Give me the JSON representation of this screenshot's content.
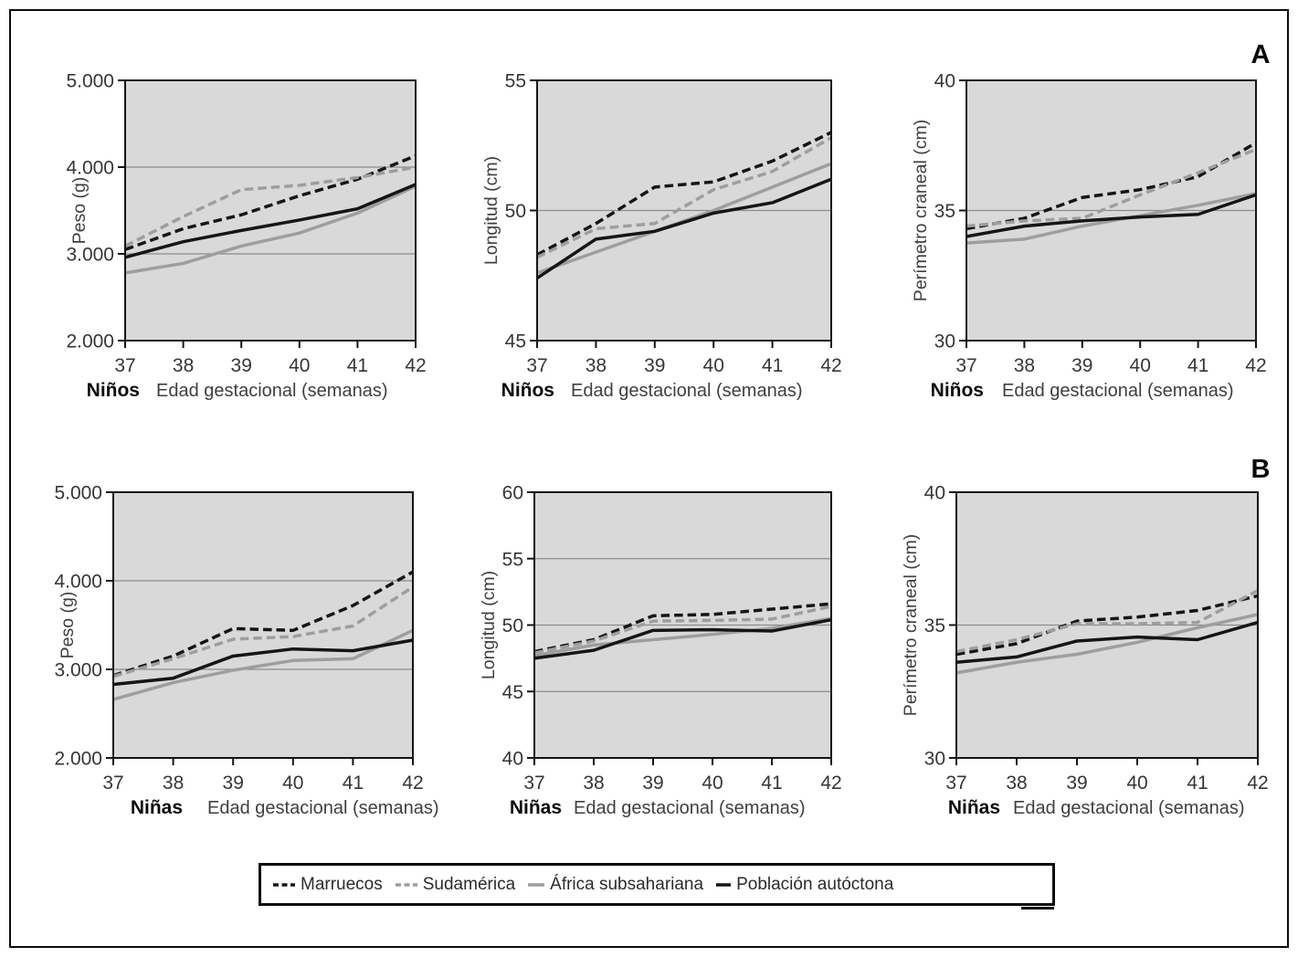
{
  "figure": {
    "panels": [
      "A",
      "B"
    ]
  },
  "colors": {
    "plot_bg": "#d9d9d9",
    "gridline": "#8c8c8c",
    "axis": "#141414",
    "black_line": "#151515",
    "gray_line": "#9e9e9e"
  },
  "legend": {
    "items": [
      {
        "label": "Marruecos",
        "style": "dashed",
        "color": "#151515"
      },
      {
        "label": "Sudamérica",
        "style": "dashed",
        "color": "#9e9e9e"
      },
      {
        "label": "África subsahariana",
        "style": "solid",
        "color": "#9e9e9e"
      },
      {
        "label": "Población autóctona",
        "style": "solid",
        "color": "#151515"
      }
    ]
  },
  "chart_data": [
    {
      "id": "peso-ninos",
      "type": "line",
      "panel": "A",
      "group_label": "Niños",
      "xlabel": "Edad gestacional (semanas)",
      "ylabel": "Peso (g)",
      "x": [
        37,
        38,
        39,
        40,
        41,
        42
      ],
      "xlim": [
        37,
        42
      ],
      "ylim": [
        2000,
        5000
      ],
      "yticks": [
        2000,
        3000,
        4000,
        5000
      ],
      "ytick_labels": [
        "2.000",
        "3.000",
        "4.000",
        "5.000"
      ],
      "gridlines": [
        3000,
        4000
      ],
      "series": [
        {
          "name": "Marruecos",
          "values": [
            3050,
            3290,
            3450,
            3670,
            3860,
            4130
          ]
        },
        {
          "name": "Sudamérica",
          "values": [
            3090,
            3430,
            3740,
            3790,
            3880,
            4000
          ]
        },
        {
          "name": "África subsahariana",
          "values": [
            2780,
            2890,
            3090,
            3240,
            3470,
            3780
          ]
        },
        {
          "name": "Población autóctona",
          "values": [
            2960,
            3140,
            3270,
            3390,
            3520,
            3800
          ]
        }
      ]
    },
    {
      "id": "longitud-ninos",
      "type": "line",
      "panel": "A",
      "group_label": "Niños",
      "xlabel": "Edad gestacional (semanas)",
      "ylabel": "Longitud (cm)",
      "x": [
        37,
        38,
        39,
        40,
        41,
        42
      ],
      "xlim": [
        37,
        42
      ],
      "ylim": [
        45,
        55
      ],
      "yticks": [
        45,
        50,
        55
      ],
      "ytick_labels": [
        "45",
        "50",
        "55"
      ],
      "gridlines": [
        50
      ],
      "series": [
        {
          "name": "Marruecos",
          "values": [
            48.3,
            49.5,
            50.9,
            51.1,
            51.9,
            53.0
          ]
        },
        {
          "name": "Sudamérica",
          "values": [
            48.2,
            49.3,
            49.5,
            50.8,
            51.5,
            52.8
          ]
        },
        {
          "name": "África subsahariana",
          "values": [
            47.6,
            48.4,
            49.2,
            50.0,
            50.9,
            51.8
          ]
        },
        {
          "name": "Población autóctona",
          "values": [
            47.4,
            48.9,
            49.2,
            49.9,
            50.3,
            51.2
          ]
        }
      ]
    },
    {
      "id": "perimetro-craneal-ninos",
      "type": "line",
      "panel": "A",
      "group_label": "Niños",
      "xlabel": "Edad gestacional (semanas)",
      "ylabel": "Perímetro craneal (cm)",
      "x": [
        37,
        38,
        39,
        40,
        41,
        42
      ],
      "xlim": [
        37,
        42
      ],
      "ylim": [
        30,
        40
      ],
      "yticks": [
        30,
        35,
        40
      ],
      "ytick_labels": [
        "30",
        "35",
        "40"
      ],
      "gridlines": [
        35
      ],
      "series": [
        {
          "name": "Marruecos",
          "values": [
            34.3,
            34.7,
            35.5,
            35.8,
            36.3,
            37.6
          ]
        },
        {
          "name": "Sudamérica",
          "values": [
            34.4,
            34.6,
            34.7,
            35.6,
            36.45,
            37.35
          ]
        },
        {
          "name": "África subsahariana",
          "values": [
            33.75,
            33.9,
            34.4,
            34.8,
            35.2,
            35.65
          ]
        },
        {
          "name": "Población autóctona",
          "values": [
            34.0,
            34.4,
            34.6,
            34.75,
            34.85,
            35.6
          ]
        }
      ]
    },
    {
      "id": "peso-ninas",
      "type": "line",
      "panel": "B",
      "group_label": "Niñas",
      "xlabel": "Edad gestacional (semanas)",
      "ylabel": "Peso (g)",
      "x": [
        37,
        38,
        39,
        40,
        41,
        42
      ],
      "xlim": [
        37,
        42
      ],
      "ylim": [
        2000,
        5000
      ],
      "yticks": [
        2000,
        3000,
        4000,
        5000
      ],
      "ytick_labels": [
        "2.000",
        "3.000",
        "4.000",
        "5.000"
      ],
      "gridlines": [
        3000,
        4000
      ],
      "series": [
        {
          "name": "Marruecos",
          "values": [
            2930,
            3150,
            3460,
            3440,
            3720,
            4100
          ]
        },
        {
          "name": "Sudamérica",
          "values": [
            2920,
            3120,
            3340,
            3370,
            3490,
            3930
          ]
        },
        {
          "name": "África subsahariana",
          "values": [
            2660,
            2850,
            2990,
            3100,
            3120,
            3440
          ]
        },
        {
          "name": "Población autóctona",
          "values": [
            2830,
            2900,
            3150,
            3230,
            3210,
            3330
          ]
        }
      ]
    },
    {
      "id": "longitud-ninas",
      "type": "line",
      "panel": "B",
      "group_label": "Niñas",
      "xlabel": "Edad gestacional (semanas)",
      "ylabel": "Longitud (cm)",
      "x": [
        37,
        38,
        39,
        40,
        41,
        42
      ],
      "xlim": [
        37,
        42
      ],
      "ylim": [
        40,
        60
      ],
      "yticks": [
        40,
        45,
        50,
        55,
        60
      ],
      "ytick_labels": [
        "40",
        "45",
        "50",
        "55",
        "60"
      ],
      "gridlines": [
        45,
        50,
        55
      ],
      "series": [
        {
          "name": "Marruecos",
          "values": [
            48.0,
            48.9,
            50.7,
            50.8,
            51.2,
            51.6
          ]
        },
        {
          "name": "Sudamérica",
          "values": [
            47.9,
            48.8,
            50.3,
            50.35,
            50.45,
            51.4
          ]
        },
        {
          "name": "África subsahariana",
          "values": [
            47.7,
            48.5,
            48.9,
            49.3,
            49.75,
            50.5
          ]
        },
        {
          "name": "Población autóctona",
          "values": [
            47.5,
            48.1,
            49.6,
            49.65,
            49.55,
            50.4
          ]
        }
      ]
    },
    {
      "id": "perimetro-craneal-ninas",
      "type": "line",
      "panel": "B",
      "group_label": "Niñas",
      "xlabel": "Edad gestacional (semanas)",
      "ylabel": "Perímetro craneal (cm)",
      "x": [
        37,
        38,
        39,
        40,
        41,
        42
      ],
      "xlim": [
        37,
        42
      ],
      "ylim": [
        30,
        40
      ],
      "yticks": [
        30,
        35,
        40
      ],
      "ytick_labels": [
        "30",
        "35",
        "40"
      ],
      "gridlines": [
        35
      ],
      "series": [
        {
          "name": "Marruecos",
          "values": [
            33.9,
            34.3,
            35.15,
            35.3,
            35.55,
            36.1
          ]
        },
        {
          "name": "Sudamérica",
          "values": [
            34.0,
            34.45,
            35.05,
            35.05,
            35.1,
            36.3
          ]
        },
        {
          "name": "África subsahariana",
          "values": [
            33.2,
            33.6,
            33.9,
            34.35,
            34.9,
            35.4
          ]
        },
        {
          "name": "Población autóctona",
          "values": [
            33.6,
            33.8,
            34.4,
            34.55,
            34.45,
            35.1
          ]
        }
      ]
    }
  ]
}
